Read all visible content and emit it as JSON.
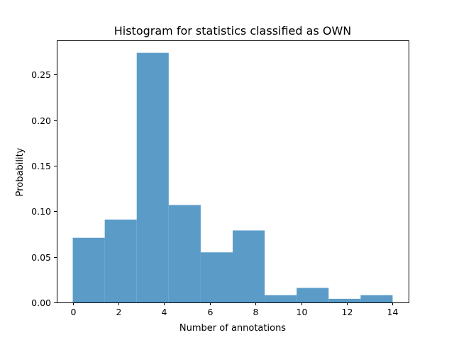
{
  "chart_data": {
    "type": "bar",
    "subtype": "histogram",
    "title": "Histogram for statistics classified as OWN",
    "xlabel": "Number of annotations",
    "ylabel": "Probability",
    "bin_edges": [
      0,
      1.4,
      2.8,
      4.2,
      5.6,
      7.0,
      8.4,
      9.8,
      11.2,
      12.6,
      14.0
    ],
    "values": [
      0.071,
      0.091,
      0.274,
      0.107,
      0.055,
      0.079,
      0.008,
      0.016,
      0.004,
      0.008
    ],
    "xlim": [
      -0.7,
      14.7
    ],
    "ylim": [
      0,
      0.2877
    ],
    "xticks": [
      0,
      2,
      4,
      6,
      8,
      10,
      12,
      14
    ],
    "xtick_labels": [
      "0",
      "2",
      "4",
      "6",
      "8",
      "10",
      "12",
      "14"
    ],
    "yticks": [
      0.0,
      0.05,
      0.1,
      0.15,
      0.2,
      0.25
    ],
    "ytick_labels": [
      "0.00",
      "0.05",
      "0.10",
      "0.15",
      "0.20",
      "0.25"
    ],
    "bar_color": "#5b9bc8",
    "grid": false,
    "legend": "none"
  }
}
